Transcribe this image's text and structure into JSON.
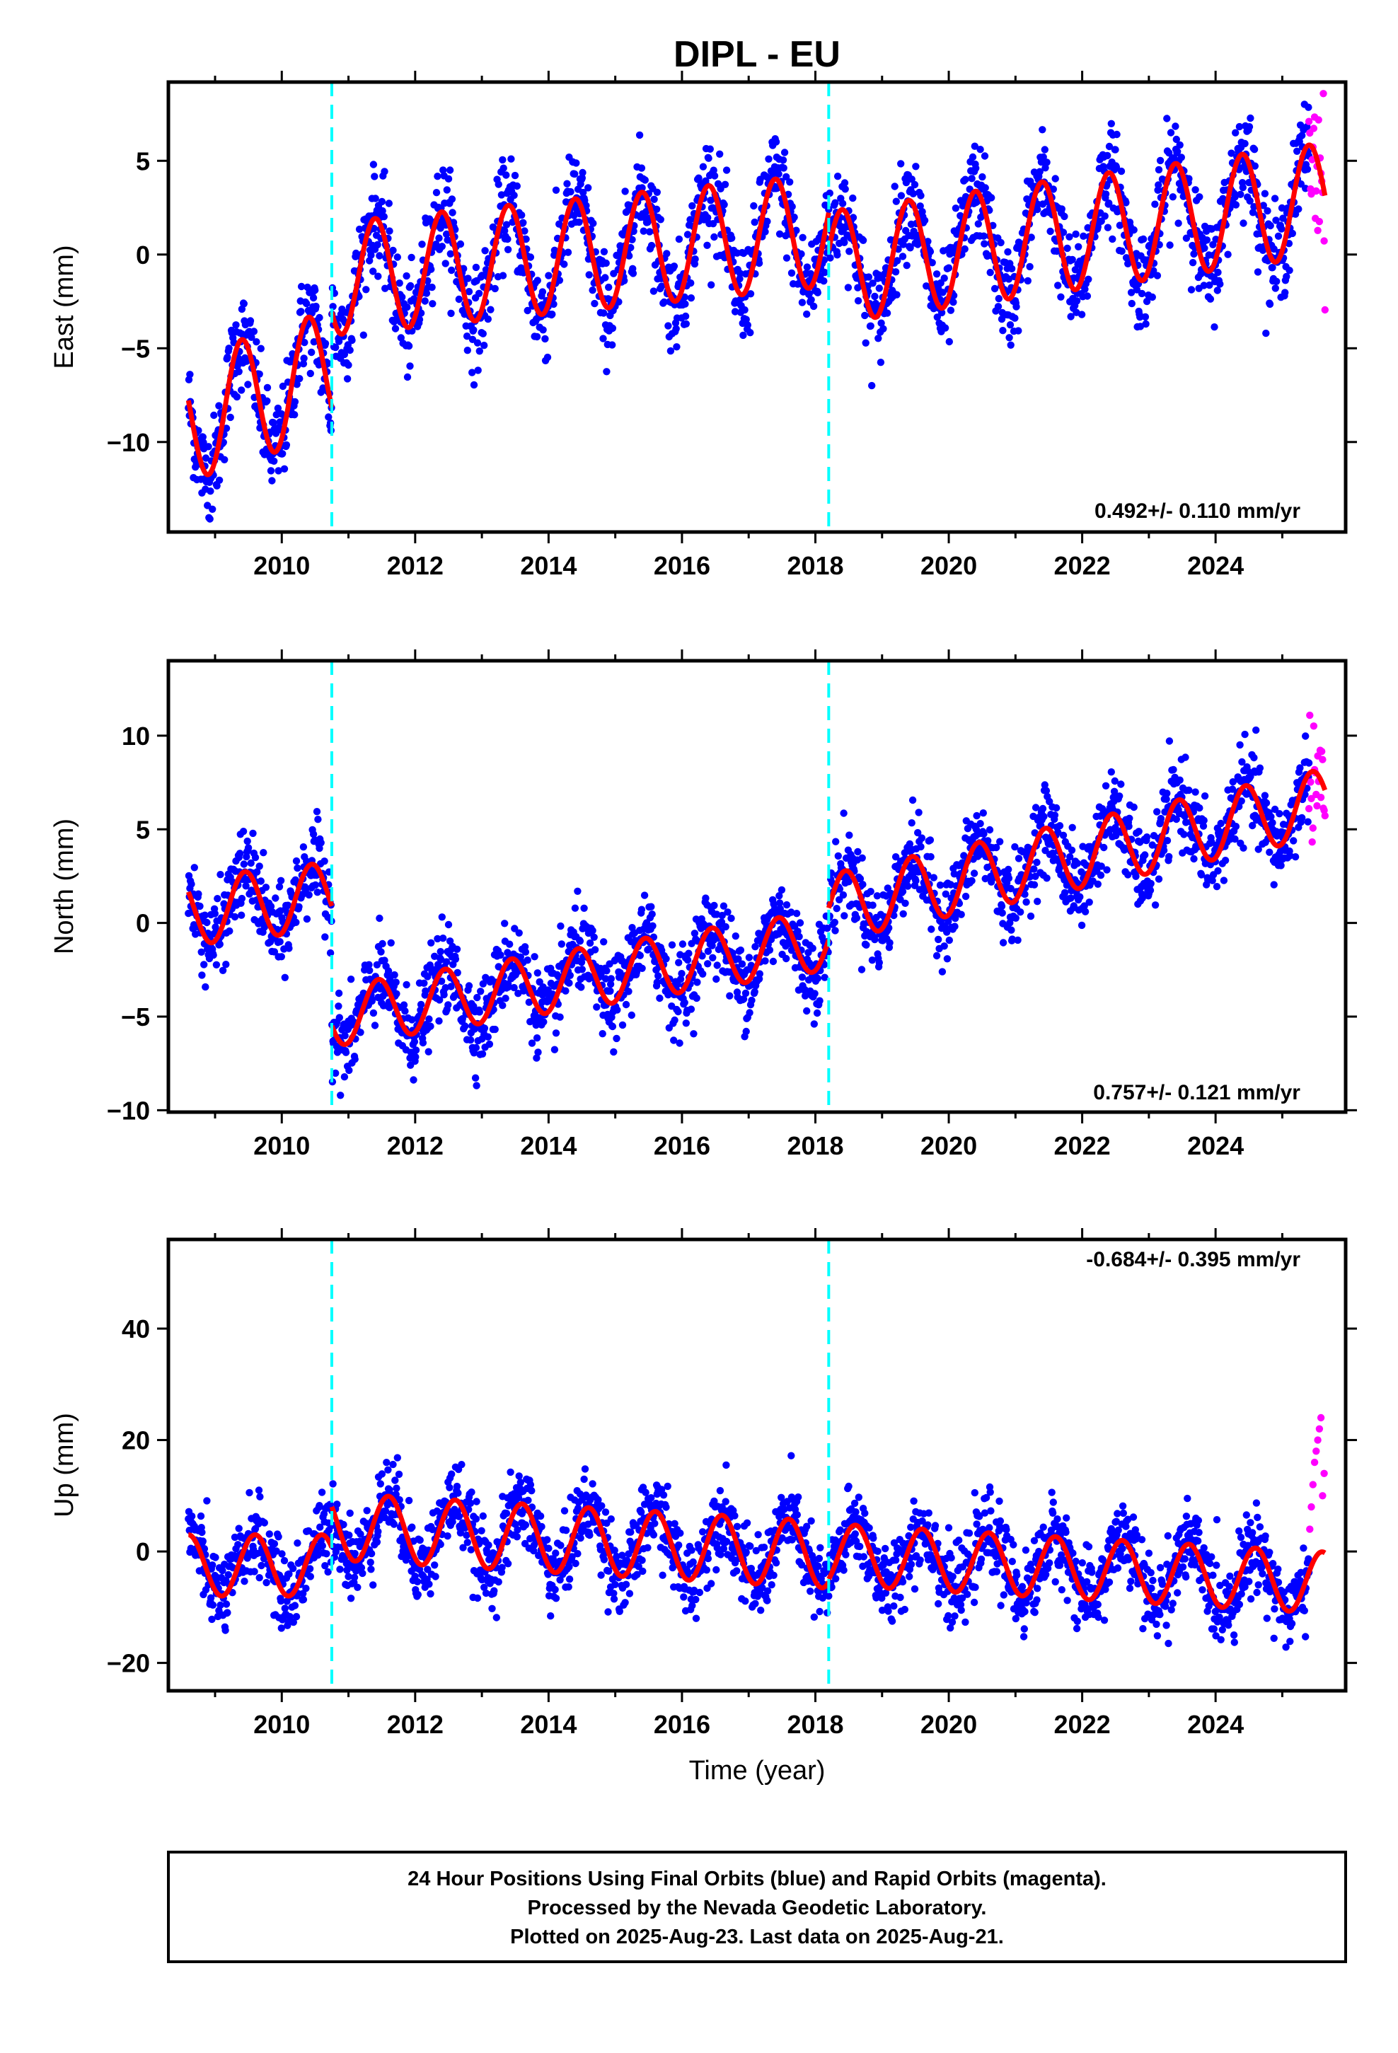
{
  "title": "DIPL - EU",
  "colors": {
    "final": "#0000ff",
    "rapid": "#ff00ff",
    "fit": "#ff0000",
    "offset": "#00ffff",
    "frame": "#000000"
  },
  "xlabel": "Time (year)",
  "footer": {
    "line1": "24 Hour Positions Using Final Orbits (blue) and Rapid Orbits (magenta).",
    "line2": "Processed by the Nevada Geodetic Laboratory.",
    "line3": "Plotted on 2025-Aug-23. Last data on 2025-Aug-21."
  },
  "chart_data": [
    {
      "type": "scatter",
      "component": "east",
      "ylabel": "East (mm)",
      "rate_text": "0.492+/- 0.110 mm/yr",
      "xlim": [
        2008.3,
        2025.95
      ],
      "ylim": [
        -14.8,
        9.2
      ],
      "x_ticks": [
        2010,
        2012,
        2014,
        2016,
        2018,
        2020,
        2022,
        2024
      ],
      "x_tick_labels": [
        "2010",
        "2012",
        "2014",
        "2016",
        "2018",
        "2020",
        "2022",
        "2024"
      ],
      "y_ticks": [
        -10,
        -5,
        0,
        5
      ],
      "y_tick_labels": [
        "−10",
        "−5",
        "0",
        "5"
      ],
      "offsets": [
        2010.75,
        2018.2
      ],
      "data_start": 2008.6,
      "data_end": 2025.4,
      "rapid_start": 2025.4,
      "rapid_end": 2025.64,
      "fit_segments": [
        {
          "t0": 2008.6,
          "t1": 2010.75,
          "offset": -8.8,
          "rate": 1.2,
          "amp": 3.3,
          "phase": 2009.4
        },
        {
          "t0": 2010.75,
          "t1": 2018.2,
          "offset": -1.3,
          "rate": 0.35,
          "amp": 3.0,
          "phase": 2011.4
        },
        {
          "t0": 2018.2,
          "t1": 2025.64,
          "offset": -0.7,
          "rate": 0.492,
          "amp": 3.0,
          "phase": 2019.4
        }
      ],
      "noise": 1.3
    },
    {
      "type": "scatter",
      "component": "north",
      "ylabel": "North (mm)",
      "rate_text": "0.757+/- 0.121 mm/yr",
      "xlim": [
        2008.3,
        2025.95
      ],
      "ylim": [
        -10.1,
        14.0
      ],
      "x_ticks": [
        2010,
        2012,
        2014,
        2016,
        2018,
        2020,
        2022,
        2024
      ],
      "x_tick_labels": [
        "2010",
        "2012",
        "2014",
        "2016",
        "2018",
        "2020",
        "2022",
        "2024"
      ],
      "y_ticks": [
        -10,
        -5,
        0,
        5,
        10
      ],
      "y_tick_labels": [
        "−10",
        "−5",
        "0",
        "5",
        "10"
      ],
      "offsets": [
        2010.75,
        2018.2
      ],
      "data_start": 2008.6,
      "data_end": 2025.4,
      "rapid_start": 2025.4,
      "rapid_end": 2025.64,
      "fit_segments": [
        {
          "t0": 2008.6,
          "t1": 2010.75,
          "offset": 0.6,
          "rate": 0.4,
          "amp": 1.8,
          "phase": 2009.45
        },
        {
          "t0": 2010.75,
          "t1": 2018.2,
          "offset": -5.0,
          "rate": 0.55,
          "amp": 1.6,
          "phase": 2011.45
        },
        {
          "t0": 2018.2,
          "t1": 2025.64,
          "offset": 0.8,
          "rate": 0.757,
          "amp": 1.8,
          "phase": 2019.45
        }
      ],
      "noise": 1.1
    },
    {
      "type": "scatter",
      "component": "up",
      "ylabel": "Up (mm)",
      "rate_text": "-0.684+/- 0.395 mm/yr",
      "xlim": [
        2008.3,
        2025.95
      ],
      "ylim": [
        -25,
        56
      ],
      "x_ticks": [
        2010,
        2012,
        2014,
        2016,
        2018,
        2020,
        2022,
        2024
      ],
      "x_tick_labels": [
        "2010",
        "2012",
        "2014",
        "2016",
        "2018",
        "2020",
        "2022",
        "2024"
      ],
      "y_ticks": [
        -20,
        0,
        20,
        40
      ],
      "y_tick_labels": [
        "−20",
        "0",
        "20",
        "40"
      ],
      "offsets": [
        2010.75,
        2018.2
      ],
      "data_start": 2008.6,
      "data_end": 2025.4,
      "rapid_start": 2025.4,
      "rapid_end": 2025.64,
      "fit_segments": [
        {
          "t0": 2008.6,
          "t1": 2010.75,
          "offset": -2.5,
          "rate": 0.0,
          "amp": 5.5,
          "phase": 2009.6
        },
        {
          "t0": 2010.75,
          "t1": 2018.2,
          "offset": 4.5,
          "rate": -0.684,
          "amp": 6.0,
          "phase": 2011.6
        },
        {
          "t0": 2018.2,
          "t1": 2025.64,
          "offset": -0.5,
          "rate": -0.684,
          "amp": 5.5,
          "phase": 2019.6
        }
      ],
      "noise": 3.5,
      "rapid_values": [
        4,
        8,
        12,
        16,
        18,
        20,
        22,
        24,
        10,
        14
      ]
    }
  ]
}
